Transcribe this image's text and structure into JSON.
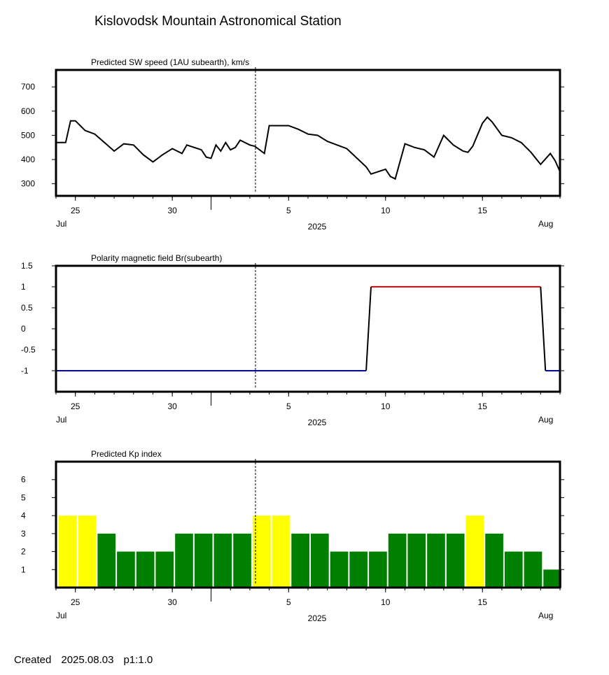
{
  "page": {
    "title": "Kislovodsk Mountain Astronomical Station",
    "created_label": "Created",
    "created_date": "2025.08.03",
    "page_label": "p1:1.0"
  },
  "time_axis": {
    "start": "2025-07-24",
    "end": "2025-08-19",
    "day_ticks": [
      {
        "date": "2025-07-25",
        "label": "25"
      },
      {
        "date": "2025-07-30",
        "label": "30"
      },
      {
        "date": "2025-08-05",
        "label": "5"
      },
      {
        "date": "2025-08-10",
        "label": "10"
      },
      {
        "date": "2025-08-15",
        "label": "15"
      }
    ],
    "month_start": "2025-08-01",
    "month_labels": {
      "left": "Jul",
      "right": "Aug"
    },
    "year_label": "2025",
    "current_time_marker": "2025-08-03"
  },
  "chart_data": [
    {
      "type": "line",
      "title": "Predicted SW speed (1AU subearth), km/s",
      "ylim": [
        250,
        770
      ],
      "yticks": [
        300,
        400,
        500,
        600,
        700
      ],
      "line_color": "#000000",
      "x": [
        "2025-07-24T00",
        "2025-07-24T12",
        "2025-07-24T18",
        "2025-07-25T00",
        "2025-07-25T12",
        "2025-07-26T00",
        "2025-07-26T12",
        "2025-07-27T00",
        "2025-07-27T12",
        "2025-07-28T00",
        "2025-07-28T12",
        "2025-07-29T00",
        "2025-07-29T12",
        "2025-07-30T00",
        "2025-07-30T12",
        "2025-07-30T18",
        "2025-07-31T12",
        "2025-07-31T18",
        "2025-08-01T00",
        "2025-08-01T06",
        "2025-08-01T12",
        "2025-08-01T18",
        "2025-08-02T00",
        "2025-08-02T06",
        "2025-08-02T12",
        "2025-08-03T00",
        "2025-08-03T06",
        "2025-08-03T12",
        "2025-08-03T18",
        "2025-08-04T00",
        "2025-08-05T00",
        "2025-08-05T12",
        "2025-08-06T00",
        "2025-08-06T12",
        "2025-08-07T00",
        "2025-08-08T00",
        "2025-08-09T00",
        "2025-08-09T06",
        "2025-08-10T00",
        "2025-08-10T06",
        "2025-08-10T12",
        "2025-08-11T00",
        "2025-08-11T12",
        "2025-08-12T00",
        "2025-08-12T12",
        "2025-08-13T00",
        "2025-08-13T12",
        "2025-08-14T00",
        "2025-08-14T06",
        "2025-08-14T12",
        "2025-08-15T00",
        "2025-08-15T06",
        "2025-08-15T12",
        "2025-08-16T00",
        "2025-08-16T12",
        "2025-08-17T00",
        "2025-08-17T12",
        "2025-08-18T00",
        "2025-08-18T12",
        "2025-08-18T18",
        "2025-08-19T00"
      ],
      "values": [
        470,
        470,
        560,
        560,
        520,
        505,
        470,
        435,
        465,
        460,
        420,
        390,
        420,
        445,
        425,
        460,
        440,
        410,
        405,
        460,
        435,
        470,
        440,
        450,
        480,
        460,
        455,
        440,
        425,
        540,
        540,
        525,
        505,
        500,
        475,
        445,
        370,
        340,
        360,
        330,
        320,
        465,
        450,
        440,
        410,
        500,
        460,
        435,
        430,
        455,
        550,
        575,
        555,
        500,
        490,
        470,
        430,
        380,
        425,
        395,
        350
      ]
    },
    {
      "type": "line",
      "title": "Polarity magnetic field  Br(subearth)",
      "ylim": [
        -1.5,
        1.5
      ],
      "yticks": [
        -1,
        -0.5,
        0,
        0.5,
        1,
        1.5
      ],
      "ytick_labels": [
        "-1",
        "-0.5",
        "0",
        "0.5",
        "1",
        "1.5"
      ],
      "colors": {
        "positive": "#ff0000",
        "negative": "#0000cc",
        "transition": "#000000"
      },
      "x": [
        "2025-07-24T00",
        "2025-08-09T00",
        "2025-08-09T06",
        "2025-08-18T00",
        "2025-08-18T06",
        "2025-08-19T00"
      ],
      "values": [
        -1,
        -1,
        1,
        1,
        -1,
        -1
      ]
    },
    {
      "type": "bar",
      "title": "Predicted Kp index",
      "ylim": [
        0,
        7
      ],
      "yticks": [
        1,
        2,
        3,
        4,
        5,
        6
      ],
      "colors": {
        "high": "#ffff00",
        "normal": "#008000"
      },
      "threshold_high": 4,
      "categories": [
        "2025-07-24",
        "2025-07-25",
        "2025-07-26",
        "2025-07-27",
        "2025-07-28",
        "2025-07-29",
        "2025-07-30",
        "2025-07-31",
        "2025-08-01",
        "2025-08-02",
        "2025-08-03",
        "2025-08-04",
        "2025-08-05",
        "2025-08-06",
        "2025-08-07",
        "2025-08-08",
        "2025-08-09",
        "2025-08-10",
        "2025-08-11",
        "2025-08-12",
        "2025-08-13",
        "2025-08-14",
        "2025-08-15",
        "2025-08-16",
        "2025-08-17",
        "2025-08-18"
      ],
      "values": [
        4,
        4,
        3,
        2,
        2,
        2,
        3,
        3,
        3,
        3,
        4,
        4,
        3,
        3,
        2,
        2,
        2,
        3,
        3,
        3,
        3,
        4,
        3,
        2,
        2,
        1
      ]
    }
  ]
}
